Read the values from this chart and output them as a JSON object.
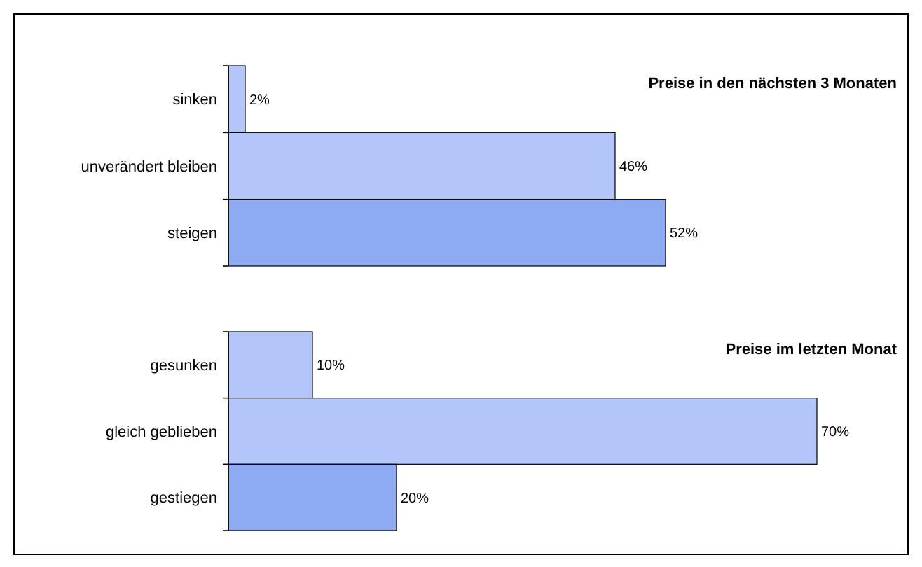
{
  "chart_data": [
    {
      "type": "bar",
      "orientation": "horizontal",
      "title": "Preise in den nächsten 3 Monaten",
      "categories": [
        "sinken",
        "unverändert bleiben",
        "steigen"
      ],
      "values": [
        2,
        46,
        52
      ],
      "colors": [
        "#b3c6f9",
        "#b3c6f9",
        "#8eaaf0"
      ],
      "value_labels": [
        "2%",
        "46%",
        "52%"
      ]
    },
    {
      "type": "bar",
      "orientation": "horizontal",
      "title": "Preise im letzten Monat",
      "categories": [
        "gesunken",
        "gleich geblieben",
        "gestiegen"
      ],
      "values": [
        10,
        70,
        20
      ],
      "colors": [
        "#b3c6f9",
        "#b3c6f9",
        "#8eaaf0"
      ],
      "value_labels": [
        "10%",
        "70%",
        "20%"
      ]
    }
  ]
}
